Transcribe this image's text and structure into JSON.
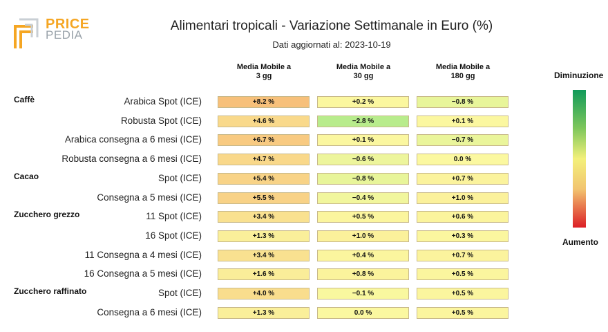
{
  "brand": {
    "word1": "PRICE",
    "word2": "PEDIA"
  },
  "header": {
    "title": "Alimentari tropicali - Variazione Settimanale in Euro (%)",
    "subtitle": "Dati aggiornati al: 2023-10-19"
  },
  "legend": {
    "top": "Diminuzione",
    "bottom": "Aumento",
    "colors": [
      "#119a5a",
      "#7fc75c",
      "#f3f07a",
      "#f2c470",
      "#dc1f26"
    ]
  },
  "chart_data": {
    "type": "table",
    "title": "Alimentari tropicali - Variazione Settimanale in Euro (%)",
    "columns": [
      "Media Mobile a\n3 gg",
      "Media Mobile a\n30 gg",
      "Media Mobile a\n180 gg"
    ],
    "groups": [
      {
        "name": "Caffè",
        "rows": [
          {
            "label": "Arabica Spot (ICE)",
            "values": [
              8.2,
              0.2,
              -0.8
            ]
          },
          {
            "label": "Robusta Spot (ICE)",
            "values": [
              4.6,
              -2.8,
              0.1
            ]
          },
          {
            "label": "Arabica consegna a 6 mesi (ICE)",
            "values": [
              6.7,
              0.1,
              -0.7
            ]
          },
          {
            "label": "Robusta consegna a 6 mesi (ICE)",
            "values": [
              4.7,
              -0.6,
              0.0
            ]
          }
        ]
      },
      {
        "name": "Cacao",
        "rows": [
          {
            "label": "Spot (ICE)",
            "values": [
              5.4,
              -0.8,
              0.7
            ]
          },
          {
            "label": "Consegna a 5 mesi (ICE)",
            "values": [
              5.5,
              -0.4,
              1.0
            ]
          }
        ]
      },
      {
        "name": "Zucchero grezzo",
        "rows": [
          {
            "label": "11 Spot (ICE)",
            "values": [
              3.4,
              0.5,
              0.6
            ]
          },
          {
            "label": "16 Spot (ICE)",
            "values": [
              1.3,
              1.0,
              0.3
            ]
          },
          {
            "label": "11 Consegna a 4 mesi (ICE)",
            "values": [
              3.4,
              0.4,
              0.7
            ]
          },
          {
            "label": "16 Consegna a 5 mesi (ICE)",
            "values": [
              1.6,
              0.8,
              0.5
            ]
          }
        ]
      },
      {
        "name": "Zucchero raffinato",
        "rows": [
          {
            "label": "Spot (ICE)",
            "values": [
              4.0,
              -0.1,
              0.5
            ]
          },
          {
            "label": "Consegna a 6 mesi (ICE)",
            "values": [
              1.3,
              0.0,
              0.5
            ]
          }
        ]
      }
    ]
  }
}
